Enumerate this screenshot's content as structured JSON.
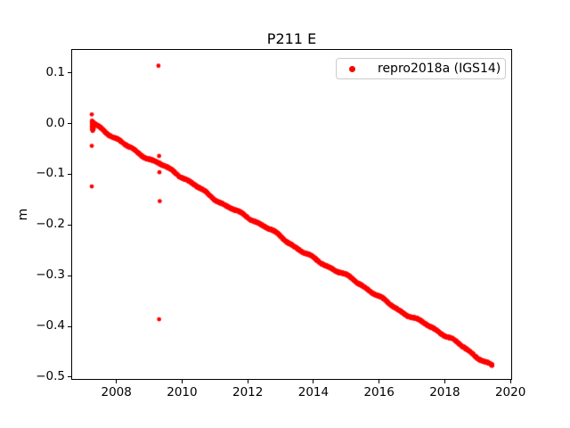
{
  "figure": {
    "kind": "matplotlib-style static plot",
    "background_color": "#ffffff",
    "text_color": "#000000"
  },
  "chart_data": {
    "type": "scatter",
    "title": "P211 E",
    "xlabel": "",
    "ylabel": "m",
    "grid": false,
    "xlim": [
      2006.625,
      2020.05
    ],
    "ylim": [
      -0.5055,
      0.147
    ],
    "x_ticks": [
      2008,
      2010,
      2012,
      2014,
      2016,
      2018,
      2020
    ],
    "x_tick_labels": [
      "2008",
      "2010",
      "2012",
      "2014",
      "2016",
      "2018",
      "2020"
    ],
    "y_ticks": [
      0.1,
      0.0,
      -0.1,
      -0.2,
      -0.3,
      -0.4,
      -0.5
    ],
    "y_tick_labels": [
      "0.1",
      "0.0",
      "−0.1",
      "−0.2",
      "−0.3",
      "−0.4",
      "−0.5"
    ],
    "legend": {
      "position": "upper right",
      "border_color": "#cccccc",
      "entries": [
        {
          "label": "repro2018a (IGS14)",
          "color": "#ff0000",
          "marker": "dot"
        }
      ]
    },
    "series": [
      {
        "name": "repro2018a (IGS14)",
        "color": "#ff0000",
        "marker": "dot",
        "marker_radius_px": 2.3,
        "trend": {
          "type": "linear-dense-scatter",
          "t_start": 2007.25,
          "t_end": 2019.45,
          "v_start": 0.0,
          "v_end": -0.476,
          "rate_m_per_yr": -0.039,
          "points_per_year": 250,
          "scatter_amplitude_m": 0.0035
        },
        "start_cluster": {
          "t_range": [
            2007.25,
            2007.31
          ],
          "v_range": [
            -0.015,
            0.006
          ],
          "count": 40
        },
        "outliers": [
          [
            2007.25,
            0.018
          ],
          [
            2007.25,
            -0.044
          ],
          [
            2007.25,
            -0.124
          ],
          [
            2009.28,
            0.114
          ],
          [
            2009.3,
            -0.064
          ],
          [
            2009.31,
            -0.096
          ],
          [
            2009.32,
            -0.153
          ],
          [
            2009.3,
            -0.386
          ]
        ]
      }
    ]
  }
}
